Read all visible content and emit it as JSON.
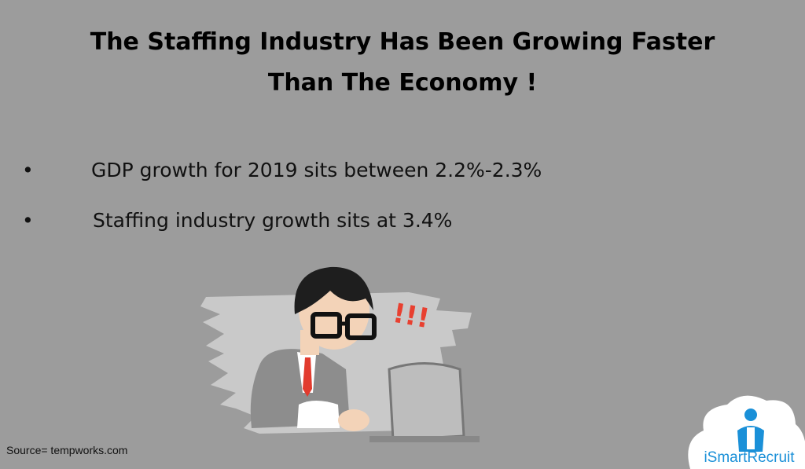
{
  "title_lines": [
    "The Staffing Industry Has Been Growing Faster",
    "Than The Economy !"
  ],
  "bullets": [
    "GDP growth for 2019 sits between 2.2%-2.3%",
    "Staffing industry growth sits at 3.4%"
  ],
  "exclamation": "!!!",
  "source": "Source= tempworks.com",
  "logo": "iSmartRecruit"
}
